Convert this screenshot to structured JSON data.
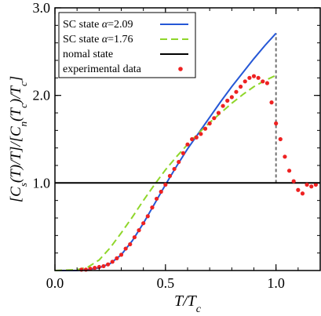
{
  "chart_data": {
    "type": "line",
    "xlabel": "T/T_c",
    "ylabel": "[C_s(T)/T]/[C_n(T_c)/T_c]",
    "xlim": [
      0.0,
      1.2
    ],
    "ylim": [
      0.0,
      3.0
    ],
    "x_ticks": [
      "0.0",
      "0.5",
      "1.0"
    ],
    "x_tick_values": [
      0.0,
      0.5,
      1.0
    ],
    "y_ticks": [
      "1.0",
      "2.0",
      "3.0"
    ],
    "y_tick_values": [
      1.0,
      2.0,
      3.0
    ],
    "legend_position": "top-left",
    "series": [
      {
        "name": "SC state α=2.09",
        "legend_prefix": "SC state ",
        "legend_alpha": "α",
        "legend_suffix": "=2.09",
        "style": "solid",
        "color": "#2557d6",
        "x": [
          0.0,
          0.1,
          0.15,
          0.2,
          0.25,
          0.3,
          0.35,
          0.4,
          0.45,
          0.5,
          0.55,
          0.6,
          0.65,
          0.7,
          0.75,
          0.8,
          0.85,
          0.9,
          0.95,
          1.0
        ],
        "y": [
          0.0,
          0.0,
          0.01,
          0.03,
          0.08,
          0.18,
          0.34,
          0.54,
          0.76,
          0.98,
          1.19,
          1.39,
          1.57,
          1.75,
          1.93,
          2.1,
          2.26,
          2.42,
          2.57,
          2.71
        ]
      },
      {
        "name": "SC state α=1.76",
        "legend_prefix": "SC state ",
        "legend_alpha": "α",
        "legend_suffix": "=1.76",
        "style": "dashed",
        "color": "#8fd62a",
        "x": [
          0.0,
          0.1,
          0.15,
          0.2,
          0.25,
          0.3,
          0.35,
          0.4,
          0.45,
          0.5,
          0.55,
          0.6,
          0.65,
          0.7,
          0.75,
          0.8,
          0.85,
          0.9,
          0.95,
          1.0
        ],
        "y": [
          0.0,
          0.01,
          0.04,
          0.12,
          0.26,
          0.43,
          0.61,
          0.8,
          0.98,
          1.15,
          1.3,
          1.44,
          1.57,
          1.69,
          1.8,
          1.91,
          2.01,
          2.1,
          2.17,
          2.23
        ]
      },
      {
        "name": "nomal state",
        "style": "solid",
        "color": "#000000",
        "x": [
          0.0,
          1.2
        ],
        "y": [
          1.0,
          1.0
        ]
      },
      {
        "name": "experimental data",
        "style": "markers",
        "color": "#ee2222",
        "x": [
          0.12,
          0.14,
          0.16,
          0.18,
          0.2,
          0.22,
          0.24,
          0.26,
          0.28,
          0.3,
          0.32,
          0.34,
          0.36,
          0.38,
          0.4,
          0.42,
          0.44,
          0.46,
          0.48,
          0.5,
          0.52,
          0.54,
          0.56,
          0.58,
          0.6,
          0.62,
          0.64,
          0.66,
          0.68,
          0.7,
          0.72,
          0.74,
          0.76,
          0.78,
          0.8,
          0.82,
          0.84,
          0.86,
          0.88,
          0.9,
          0.92,
          0.94,
          0.96,
          0.98,
          1.0,
          1.02,
          1.04,
          1.06,
          1.08,
          1.1,
          1.12,
          1.14,
          1.16,
          1.18
        ],
        "y": [
          0.01,
          0.01,
          0.02,
          0.03,
          0.04,
          0.05,
          0.07,
          0.1,
          0.14,
          0.18,
          0.25,
          0.3,
          0.38,
          0.46,
          0.54,
          0.62,
          0.72,
          0.82,
          0.9,
          0.98,
          1.08,
          1.16,
          1.24,
          1.34,
          1.44,
          1.5,
          1.52,
          1.56,
          1.62,
          1.68,
          1.74,
          1.8,
          1.88,
          1.94,
          1.98,
          2.04,
          2.1,
          2.16,
          2.2,
          2.22,
          2.2,
          2.16,
          2.14,
          1.92,
          1.68,
          1.5,
          1.3,
          1.14,
          1.02,
          0.92,
          0.88,
          0.98,
          0.96,
          0.98
        ]
      }
    ],
    "tc_marker": {
      "style": "dotted-vertical",
      "color": "#707070",
      "x": 1.0,
      "y_from": 1.0,
      "y_to": 2.71
    }
  }
}
